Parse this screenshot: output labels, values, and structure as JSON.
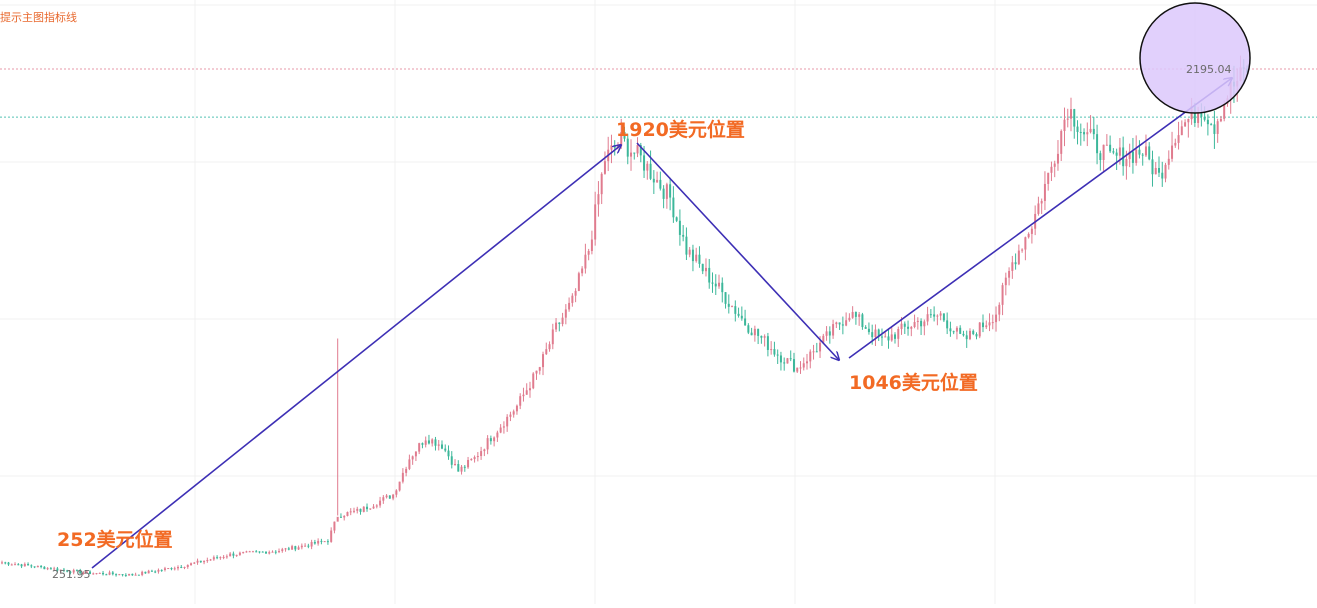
{
  "hint_text": "提示主图指标线",
  "colors": {
    "up": "#e07b8e",
    "down": "#3cb79a",
    "arrow": "#3d2fb5",
    "annotation": "#f26a24",
    "price_line_red": "#e79aa9",
    "price_line_teal": "#54c2b4",
    "highlight_fill": "#dcc8fb",
    "grid": "#f0f0f0"
  },
  "annotations": [
    {
      "text": "252美元位置"
    },
    {
      "text": "1920美元位置"
    },
    {
      "text": "1046美元位置"
    }
  ],
  "price_labels": {
    "last": "2195.04",
    "low": "251.95"
  },
  "chart_data": {
    "type": "candlestick",
    "title": "",
    "xlabel": "",
    "ylabel": "",
    "ylim": [
      140,
      2460
    ],
    "grid": true,
    "key_levels": [
      {
        "label": "252美元位置",
        "value": 252
      },
      {
        "label": "1920美元位置",
        "value": 1920
      },
      {
        "label": "1046美元位置",
        "value": 1046
      }
    ],
    "current_price": 2195.04,
    "marked_low": 251.95,
    "trend_arrows": [
      {
        "from": 252,
        "to": 1920
      },
      {
        "from": 1920,
        "to": 1046
      },
      {
        "from": 1046,
        "to": 2195
      }
    ],
    "anchors": [
      [
        0,
        300
      ],
      [
        25,
        260
      ],
      [
        40,
        252
      ],
      [
        55,
        285
      ],
      [
        70,
        330
      ],
      [
        85,
        345
      ],
      [
        95,
        370
      ],
      [
        100,
        385
      ],
      [
        103,
        480
      ],
      [
        110,
        500
      ],
      [
        120,
        560
      ],
      [
        125,
        700
      ],
      [
        130,
        780
      ],
      [
        135,
        750
      ],
      [
        140,
        650
      ],
      [
        145,
        700
      ],
      [
        150,
        780
      ],
      [
        158,
        900
      ],
      [
        165,
        1050
      ],
      [
        170,
        1200
      ],
      [
        175,
        1300
      ],
      [
        180,
        1500
      ],
      [
        185,
        1850
      ],
      [
        190,
        1920
      ],
      [
        196,
        1850
      ],
      [
        205,
        1700
      ],
      [
        210,
        1500
      ],
      [
        220,
        1350
      ],
      [
        228,
        1220
      ],
      [
        238,
        1100
      ],
      [
        244,
        1046
      ],
      [
        252,
        1150
      ],
      [
        260,
        1260
      ],
      [
        270,
        1150
      ],
      [
        280,
        1220
      ],
      [
        288,
        1250
      ],
      [
        295,
        1150
      ],
      [
        300,
        1200
      ],
      [
        305,
        1260
      ],
      [
        310,
        1450
      ],
      [
        316,
        1600
      ],
      [
        322,
        1820
      ],
      [
        327,
        2050
      ],
      [
        332,
        1950
      ],
      [
        340,
        1850
      ],
      [
        350,
        1880
      ],
      [
        355,
        1780
      ],
      [
        360,
        1950
      ],
      [
        368,
        2050
      ],
      [
        372,
        1980
      ],
      [
        376,
        2100
      ],
      [
        382,
        2195
      ]
    ],
    "spikes": [
      {
        "index": 103,
        "high": 1160,
        "low": 480
      }
    ],
    "candle_count": 383
  }
}
